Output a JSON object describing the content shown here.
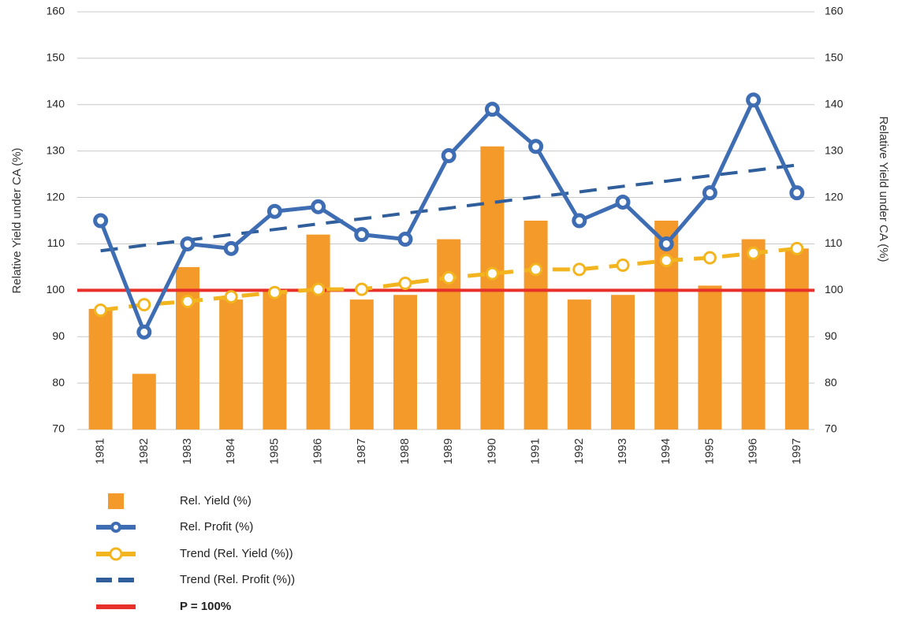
{
  "chart_data": {
    "type": "combo",
    "y_label": "Relative Yield under CA (%)",
    "y2_label": "Relative Yield under CA (%)",
    "categories": [
      "1981",
      "1982",
      "1983",
      "1984",
      "1985",
      "1986",
      "1987",
      "1988",
      "1989",
      "1990",
      "1991",
      "1992",
      "1993",
      "1994",
      "1995",
      "1996",
      "1997"
    ],
    "ylim": [
      70,
      160
    ],
    "yticks": [
      70,
      80,
      90,
      100,
      110,
      120,
      130,
      140,
      150,
      160
    ],
    "y2lim": [
      70,
      160
    ],
    "y2ticks": [
      70,
      80,
      90,
      100,
      110,
      120,
      130,
      140,
      150,
      160
    ],
    "grid": true,
    "series": [
      {
        "name": "Rel. Yield (%)",
        "type": "bar",
        "color": "#f39a2b",
        "values": [
          96,
          82,
          105,
          98,
          100,
          112,
          98,
          99,
          111,
          131,
          115,
          98,
          99,
          115,
          101,
          111,
          109
        ]
      },
      {
        "name": "Rel. Profit (%)",
        "type": "line",
        "color": "#3f6db3",
        "values": [
          115,
          91,
          110,
          109,
          117,
          118,
          112,
          111,
          129,
          139,
          131,
          115,
          119,
          110,
          121,
          141,
          121
        ]
      },
      {
        "name": "Trend (Rel. Yield (%))",
        "type": "line-marker",
        "color": "#f2b51f",
        "values": [
          95.7,
          96.9,
          97.6,
          98.6,
          99.5,
          100.2,
          100.2,
          101.5,
          102.7,
          103.6,
          104.5,
          104.5,
          105.4,
          106.4,
          107,
          108,
          109
        ]
      },
      {
        "name": "Trend (Rel. Profit (%))",
        "type": "dashed",
        "color": "#2f5e9a",
        "values": [
          108.5,
          109.7,
          110.8,
          112.0,
          113.1,
          114.3,
          115.4,
          116.6,
          117.7,
          118.9,
          120.1,
          121.2,
          122.4,
          123.5,
          124.7,
          125.8,
          127.0
        ]
      }
    ],
    "reference_line": {
      "name": "P = 100%",
      "value": 100,
      "color": "#e8302b"
    }
  }
}
